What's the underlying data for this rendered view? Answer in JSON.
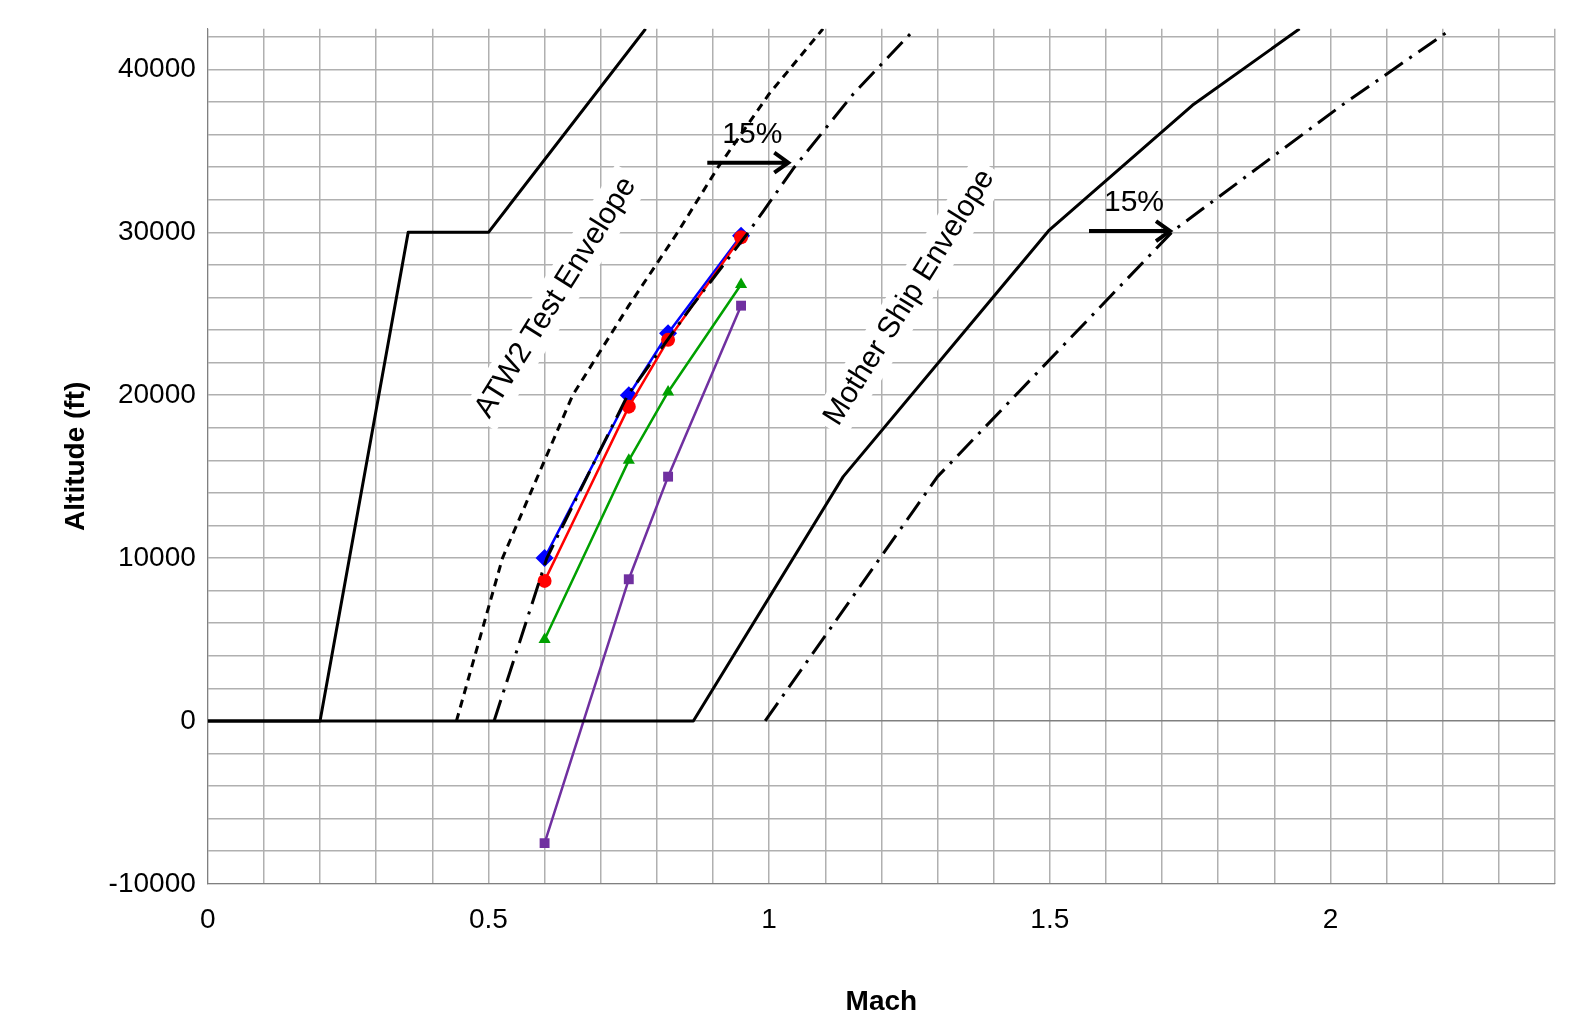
{
  "chart_data": {
    "type": "line",
    "xlabel": "Mach",
    "ylabel": "Altitude (ft)",
    "xlim": [
      0,
      2.4
    ],
    "ylim": [
      -10000,
      42500
    ],
    "xticks": [
      0,
      {
        "value": 0.1,
        "label": null
      },
      {
        "value": 0.2,
        "label": null
      },
      {
        "value": 0.3,
        "label": null
      },
      {
        "value": 0.4,
        "label": null
      },
      0.5,
      {
        "value": 0.6,
        "label": null
      },
      {
        "value": 0.7,
        "label": null
      },
      {
        "value": 0.8,
        "label": null
      },
      {
        "value": 0.9,
        "label": null
      },
      1,
      {
        "value": 1.1,
        "label": null
      },
      {
        "value": 1.2,
        "label": null
      },
      {
        "value": 1.3,
        "label": null
      },
      {
        "value": 1.4,
        "label": null
      },
      1.5,
      {
        "value": 1.6,
        "label": null
      },
      {
        "value": 1.7,
        "label": null
      },
      {
        "value": 1.8,
        "label": null
      },
      {
        "value": 1.9,
        "label": null
      },
      2,
      {
        "value": 2.1,
        "label": null
      },
      {
        "value": 2.2,
        "label": null
      },
      {
        "value": 2.3,
        "label": null
      },
      {
        "value": 2.4,
        "label": null
      }
    ],
    "yticks": [
      -10000,
      {
        "value": -8000,
        "label": null
      },
      {
        "value": -6000,
        "label": null
      },
      {
        "value": -4000,
        "label": null
      },
      {
        "value": -2000,
        "label": null
      },
      0,
      {
        "value": 2000,
        "label": null
      },
      {
        "value": 4000,
        "label": null
      },
      {
        "value": 6000,
        "label": null
      },
      {
        "value": 8000,
        "label": null
      },
      10000,
      {
        "value": 12000,
        "label": null
      },
      {
        "value": 14000,
        "label": null
      },
      {
        "value": 16000,
        "label": null
      },
      {
        "value": 18000,
        "label": null
      },
      20000,
      {
        "value": 22000,
        "label": null
      },
      {
        "value": 24000,
        "label": null
      },
      {
        "value": 26000,
        "label": null
      },
      {
        "value": 28000,
        "label": null
      },
      30000,
      {
        "value": 32000,
        "label": null
      },
      {
        "value": 34000,
        "label": null
      },
      {
        "value": 36000,
        "label": null
      },
      {
        "value": 38000,
        "label": null
      },
      40000,
      {
        "value": 42000,
        "label": null
      }
    ],
    "grid": true,
    "legend": false,
    "series": [
      {
        "color": "#000000",
        "line_style": "solid",
        "marker": "none",
        "x": [
          0,
          0.2,
          0.357,
          0.5,
          0.78
        ],
        "values": [
          0,
          0,
          30000,
          30000,
          42500
        ]
      },
      {
        "color": "#000000",
        "line_style": "dashed",
        "marker": "none",
        "x": [
          0.443,
          0.525,
          0.6,
          0.65,
          0.75,
          0.837,
          0.909,
          1.0,
          1.096
        ],
        "values": [
          0,
          10000,
          16000,
          20000,
          25500,
          30000,
          34000,
          38500,
          42500
        ]
      },
      {
        "color": "#000000",
        "line_style": "dashdot",
        "marker": "none",
        "x": [
          0.51,
          0.604,
          0.69,
          0.748,
          0.863,
          0.963,
          1.045,
          1.15,
          1.26
        ],
        "values": [
          0,
          10000,
          16000,
          20000,
          25500,
          30000,
          34000,
          38500,
          42500
        ]
      },
      {
        "color": "#000000",
        "line_style": "solid",
        "marker": "none",
        "x": [
          0,
          0.865,
          1.132,
          1.498,
          1.754,
          1.945
        ],
        "values": [
          0,
          0,
          15000,
          30100,
          37800,
          42500
        ]
      },
      {
        "color": "#000000",
        "line_style": "dashdot",
        "marker": "none",
        "x": [
          0.993,
          1.3,
          1.72,
          2.02,
          2.216
        ],
        "values": [
          0,
          15000,
          30100,
          37800,
          42500
        ]
      },
      {
        "color": "#7030a0",
        "line_style": "solid",
        "marker": "square",
        "x": [
          0.6,
          0.75,
          0.82,
          0.95
        ],
        "values": [
          -7500,
          8700,
          15000,
          25500
        ]
      },
      {
        "color": "#00a000",
        "line_style": "solid",
        "marker": "triangle",
        "x": [
          0.6,
          0.75,
          0.82,
          0.95
        ],
        "values": [
          5000,
          16000,
          20200,
          26800
        ]
      },
      {
        "color": "#ff0000",
        "line_style": "solid",
        "marker": "circle",
        "x": [
          0.6,
          0.75,
          0.82,
          0.95
        ],
        "values": [
          8600,
          19300,
          23400,
          29700
        ]
      },
      {
        "color": "#0000ff",
        "line_style": "solid",
        "marker": "diamond",
        "x": [
          0.6,
          0.75,
          0.82,
          0.95
        ],
        "values": [
          10000,
          20000,
          23800,
          29800
        ]
      }
    ],
    "annotations": [
      "15%",
      "15%",
      "ATW2 Test Envelope",
      "Mother Ship Envelope"
    ]
  }
}
